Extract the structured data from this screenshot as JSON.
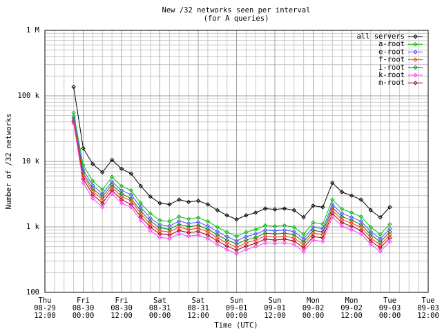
{
  "chart_data": {
    "type": "line",
    "title": "New /32 networks seen per interval",
    "subtitle": "(for A queries)",
    "x_label": "Time (UTC)",
    "y_label": "Number of /32 networks",
    "log_y": true,
    "grid": true,
    "legend": "top-right",
    "x": [
      "08-29 21:00",
      "08-30 00:00",
      "08-30 03:00",
      "08-30 06:00",
      "08-30 09:00",
      "08-30 12:00",
      "08-30 15:00",
      "08-30 18:00",
      "08-30 21:00",
      "08-31 00:00",
      "08-31 03:00",
      "08-31 06:00",
      "08-31 09:00",
      "08-31 12:00",
      "08-31 15:00",
      "08-31 18:00",
      "08-31 21:00",
      "09-01 00:00",
      "09-01 03:00",
      "09-01 06:00",
      "09-01 09:00",
      "09-01 12:00",
      "09-01 15:00",
      "09-01 18:00",
      "09-01 21:00",
      "09-02 00:00",
      "09-02 03:00",
      "09-02 06:00",
      "09-02 09:00",
      "09-02 12:00",
      "09-02 15:00",
      "09-02 18:00",
      "09-02 21:00",
      "09-03 00:00"
    ],
    "xlim": [
      "08-29 12:00",
      "09-03 12:00"
    ],
    "xticks": [
      {
        "value": "08-29 12:00",
        "label": "Thu 08-29 12:00"
      },
      {
        "value": "08-30 00:00",
        "label": "Fri 08-30 00:00"
      },
      {
        "value": "08-30 12:00",
        "label": "Fri 08-30 12:00"
      },
      {
        "value": "08-31 00:00",
        "label": "Sat 08-31 00:00"
      },
      {
        "value": "08-31 12:00",
        "label": "Sat 08-31 12:00"
      },
      {
        "value": "09-01 00:00",
        "label": "Sun 09-01 00:00"
      },
      {
        "value": "09-01 12:00",
        "label": "Sun 09-01 12:00"
      },
      {
        "value": "09-02 00:00",
        "label": "Mon 09-02 00:00"
      },
      {
        "value": "09-02 12:00",
        "label": "Mon 09-02 12:00"
      },
      {
        "value": "09-03 00:00",
        "label": "Tue 09-03 00:00"
      },
      {
        "value": "09-03 12:00",
        "label": "Tue 09-03 12:00"
      }
    ],
    "ylim": [
      100,
      1000000
    ],
    "yticks": [
      100,
      {
        "value": 1000,
        "label": "1 k"
      },
      {
        "value": 10000,
        "label": "10 k"
      },
      {
        "value": 100000,
        "label": "100 k"
      },
      {
        "value": 1000000,
        "label": "1 M"
      }
    ],
    "yminorticks": [
      200,
      300,
      400,
      500,
      600,
      700,
      800,
      900,
      2000,
      3000,
      4000,
      5000,
      6000,
      7000,
      8000,
      9000,
      20000,
      30000,
      40000,
      50000,
      60000,
      70000,
      80000,
      90000,
      200000,
      300000,
      400000,
      500000,
      600000,
      700000,
      800000,
      900000
    ],
    "series": [
      {
        "name": "all servers",
        "color": "#000000",
        "values": [
          137000,
          15800,
          9100,
          6800,
          10500,
          7700,
          6500,
          4200,
          2900,
          2300,
          2200,
          2600,
          2400,
          2500,
          2200,
          1800,
          1500,
          1300,
          1500,
          1650,
          1900,
          1850,
          1900,
          1800,
          1400,
          2100,
          2000,
          4700,
          3400,
          3000,
          2600,
          1800,
          1400,
          2000
        ]
      },
      {
        "name": "a-root",
        "color": "#00c000",
        "values": [
          55000,
          8700,
          5000,
          3700,
          5800,
          4200,
          3600,
          2300,
          1600,
          1260,
          1210,
          1430,
          1320,
          1380,
          1210,
          990,
          830,
          720,
          830,
          910,
          1050,
          1020,
          1050,
          990,
          770,
          1160,
          1100,
          2600,
          1870,
          1650,
          1430,
          990,
          770,
          1100
        ]
      },
      {
        "name": "e-root",
        "color": "#5050ff",
        "values": [
          48000,
          7400,
          4300,
          3200,
          4900,
          3600,
          3100,
          2000,
          1360,
          1080,
          1030,
          1220,
          1130,
          1180,
          1030,
          850,
          710,
          610,
          710,
          780,
          890,
          870,
          890,
          850,
          660,
          990,
          940,
          2200,
          1600,
          1410,
          1220,
          850,
          660,
          940
        ]
      },
      {
        "name": "f-root",
        "color": "#ff3030",
        "values": [
          42000,
          6000,
          3500,
          2600,
          4000,
          2900,
          2500,
          1600,
          1100,
          870,
          840,
          990,
          910,
          950,
          840,
          680,
          570,
          490,
          570,
          630,
          720,
          700,
          720,
          680,
          530,
          800,
          760,
          1790,
          1290,
          1140,
          990,
          680,
          530,
          760
        ]
      },
      {
        "name": "i-root",
        "color": "#008000",
        "values": [
          45000,
          6600,
          3800,
          2900,
          4400,
          3200,
          2700,
          1760,
          1220,
          970,
          920,
          1090,
          1010,
          1050,
          920,
          760,
          630,
          550,
          630,
          690,
          800,
          780,
          800,
          760,
          590,
          880,
          840,
          1970,
          1430,
          1260,
          1090,
          760,
          590,
          840
        ]
      },
      {
        "name": "k-root",
        "color": "#ff40ff",
        "values": [
          38000,
          4700,
          2700,
          2000,
          3200,
          2300,
          2000,
          1260,
          870,
          690,
          660,
          780,
          720,
          750,
          660,
          540,
          450,
          390,
          450,
          500,
          570,
          560,
          570,
          540,
          420,
          630,
          600,
          1410,
          1020,
          900,
          780,
          540,
          420,
          600
        ]
      },
      {
        "name": "m-root",
        "color": "#a00000",
        "values": [
          40000,
          5400,
          3100,
          2300,
          3600,
          2600,
          2200,
          1430,
          990,
          780,
          750,
          880,
          820,
          850,
          750,
          610,
          510,
          440,
          510,
          560,
          650,
          630,
          650,
          610,
          480,
          710,
          680,
          1600,
          1160,
          1020,
          880,
          610,
          480,
          680
        ]
      }
    ]
  }
}
